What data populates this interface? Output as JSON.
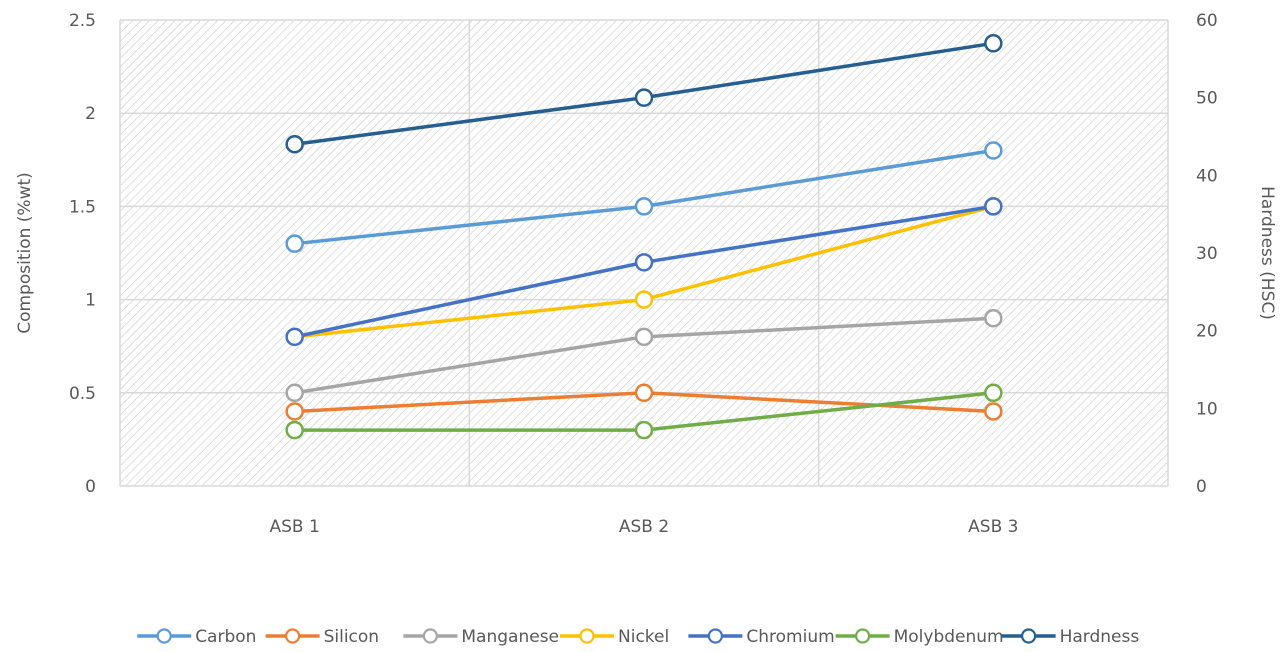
{
  "chart_data": {
    "type": "line",
    "categories": [
      "ASB 1",
      "ASB 2",
      "ASB 3"
    ],
    "ylabel": "Composition (%wt)",
    "ylim": [
      0,
      2.5
    ],
    "yticks": [
      "0",
      "0.5",
      "1",
      "1.5",
      "2",
      "2.5"
    ],
    "y2label": "Hardness (HSC)",
    "y2lim": [
      0,
      60
    ],
    "y2ticks": [
      "0",
      "10",
      "20",
      "30",
      "40",
      "50",
      "60"
    ],
    "grid": true,
    "legend_position": "bottom",
    "series": [
      {
        "name": "Carbon",
        "axis": "left",
        "color": "#5B9BD5",
        "values": [
          1.3,
          1.5,
          1.8
        ]
      },
      {
        "name": "Silicon",
        "axis": "left",
        "color": "#ED7D31",
        "values": [
          0.4,
          0.5,
          0.4
        ]
      },
      {
        "name": "Manganese",
        "axis": "left",
        "color": "#A5A5A5",
        "values": [
          0.5,
          0.8,
          0.9
        ]
      },
      {
        "name": "Nickel",
        "axis": "left",
        "color": "#FFC000",
        "values": [
          0.8,
          1.0,
          1.5
        ]
      },
      {
        "name": "Chromium",
        "axis": "left",
        "color": "#4472C4",
        "values": [
          0.8,
          1.2,
          1.5
        ]
      },
      {
        "name": "Molybdenum",
        "axis": "left",
        "color": "#70AD47",
        "values": [
          0.3,
          0.3,
          0.5
        ]
      },
      {
        "name": "Hardness",
        "axis": "right",
        "color": "#255E91",
        "values": [
          44,
          50,
          57
        ]
      }
    ]
  }
}
